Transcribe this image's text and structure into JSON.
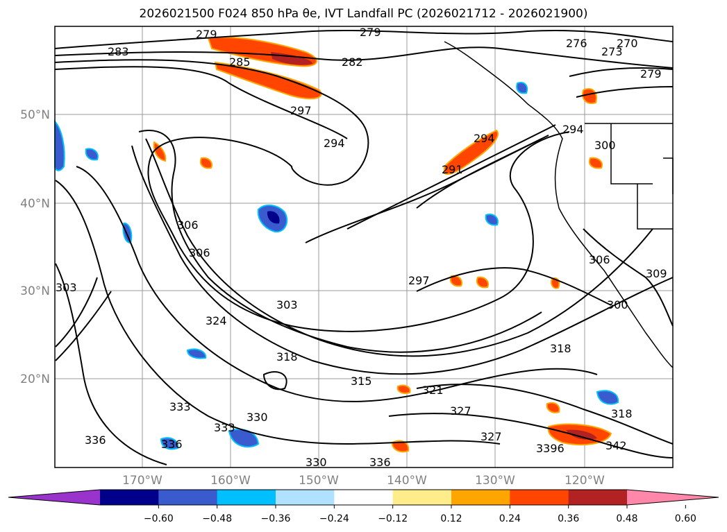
{
  "title": "2026021500 F024 850 hPa θe, IVT Landfall PC (2026021712 - 2026021900)",
  "map": {
    "lat_labels": [
      "50°N",
      "40°N",
      "30°N",
      "20°N"
    ],
    "lon_labels": [
      "170°W",
      "160°W",
      "150°W",
      "140°W",
      "130°W",
      "120°W"
    ],
    "contour_labels": [
      "279",
      "279",
      "283",
      "285",
      "282",
      "276",
      "273",
      "270",
      "279",
      "297",
      "294",
      "294",
      "294",
      "300",
      "291",
      "306",
      "306",
      "303",
      "297",
      "303",
      "324",
      "318",
      "315",
      "321",
      "318",
      "333",
      "333",
      "330",
      "327",
      "327",
      "3396",
      "342",
      "336",
      "336",
      "330",
      "336",
      "318",
      "306",
      "300",
      "309"
    ]
  },
  "colorbar": {
    "ticks": [
      "−0.60",
      "−0.48",
      "−0.36",
      "−0.24",
      "−0.12",
      "0.12",
      "0.24",
      "0.36",
      "0.48",
      "0.60"
    ],
    "colors": [
      "#9933cc",
      "#00008b",
      "#3a5bcd",
      "#00bfff",
      "#b0e2ff",
      "#ffffff",
      "#ffec8b",
      "#ffa500",
      "#ff4500",
      "#b22222",
      "#ff88aa"
    ]
  }
}
